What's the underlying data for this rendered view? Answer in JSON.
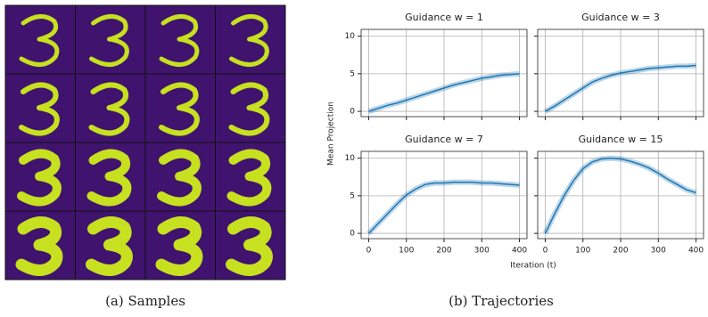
{
  "chart_data": [
    {
      "type": "line",
      "title": "Guidance w = 1",
      "x": [
        0,
        25,
        50,
        75,
        100,
        125,
        150,
        175,
        200,
        225,
        250,
        275,
        300,
        325,
        350,
        375,
        400
      ],
      "series": [
        {
          "color": "#1f77b4",
          "values": [
            0,
            0.4,
            0.8,
            1.1,
            1.5,
            1.9,
            2.3,
            2.7,
            3.1,
            3.5,
            3.8,
            4.1,
            4.4,
            4.6,
            4.8,
            4.9,
            5.0
          ]
        }
      ],
      "xlim": [
        -20,
        420
      ],
      "ylim": [
        -0.7,
        10.9
      ],
      "xticks": [
        0,
        100,
        200,
        300,
        400
      ],
      "yticks": [
        0,
        5,
        10
      ],
      "grid": true,
      "xticklabels": false,
      "yticklabels": true
    },
    {
      "type": "line",
      "title": "Guidance w = 3",
      "x": [
        0,
        25,
        50,
        75,
        100,
        125,
        150,
        175,
        200,
        225,
        250,
        275,
        300,
        325,
        350,
        375,
        400
      ],
      "series": [
        {
          "color": "#1f77b4",
          "values": [
            0,
            0.7,
            1.5,
            2.3,
            3.1,
            3.9,
            4.4,
            4.8,
            5.1,
            5.3,
            5.5,
            5.7,
            5.8,
            5.9,
            6.0,
            6.0,
            6.1
          ]
        }
      ],
      "xlim": [
        -20,
        420
      ],
      "ylim": [
        -0.7,
        10.9
      ],
      "xticks": [
        0,
        100,
        200,
        300,
        400
      ],
      "yticks": [
        0,
        5,
        10
      ],
      "grid": true,
      "xticklabels": false,
      "yticklabels": false
    },
    {
      "type": "line",
      "title": "Guidance w = 7",
      "x": [
        0,
        25,
        50,
        75,
        100,
        125,
        150,
        175,
        200,
        225,
        250,
        275,
        300,
        325,
        350,
        375,
        400
      ],
      "series": [
        {
          "color": "#1f77b4",
          "values": [
            0,
            1.3,
            2.6,
            3.9,
            5.1,
            5.9,
            6.5,
            6.7,
            6.7,
            6.8,
            6.8,
            6.8,
            6.7,
            6.7,
            6.6,
            6.5,
            6.4
          ]
        }
      ],
      "xlim": [
        -20,
        420
      ],
      "ylim": [
        -0.7,
        10.9
      ],
      "xticks": [
        0,
        100,
        200,
        300,
        400
      ],
      "yticks": [
        0,
        5,
        10
      ],
      "grid": true,
      "xticklabels": true,
      "yticklabels": true
    },
    {
      "type": "line",
      "title": "Guidance w = 15",
      "x": [
        0,
        25,
        50,
        75,
        100,
        125,
        150,
        175,
        200,
        225,
        250,
        275,
        300,
        325,
        350,
        375,
        400
      ],
      "series": [
        {
          "color": "#1f77b4",
          "values": [
            0,
            2.6,
            5.0,
            7.0,
            8.6,
            9.5,
            9.9,
            10.0,
            9.9,
            9.6,
            9.2,
            8.7,
            8.0,
            7.2,
            6.5,
            5.8,
            5.4
          ]
        }
      ],
      "xlim": [
        -20,
        420
      ],
      "ylim": [
        -0.7,
        10.9
      ],
      "xticks": [
        0,
        100,
        200,
        300,
        400
      ],
      "yticks": [
        0,
        5,
        10
      ],
      "grid": true,
      "xticklabels": true,
      "yticklabels": false
    }
  ],
  "xlabel": "Iteration (t)",
  "ylabel": "Mean Projection",
  "captions": [
    "(a)  Samples",
    "(b)  Trajectories"
  ]
}
